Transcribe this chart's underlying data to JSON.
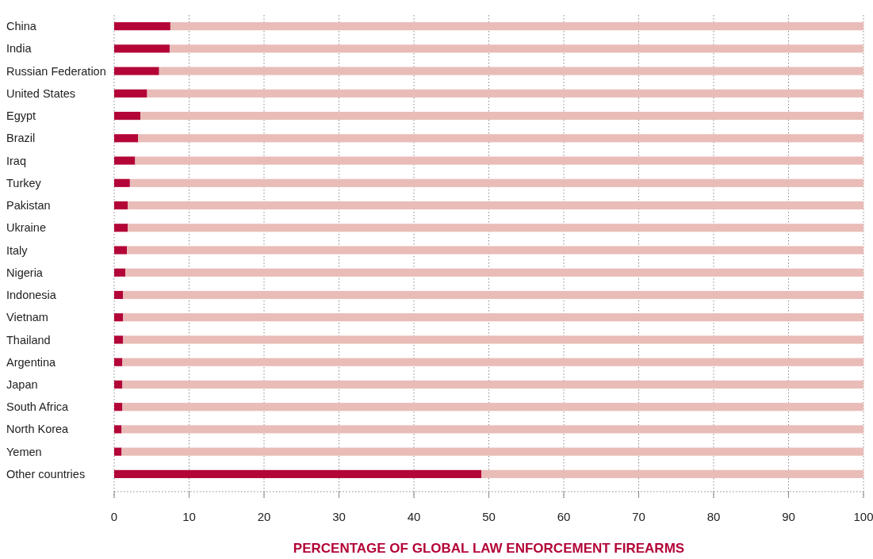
{
  "chart_data": {
    "type": "bar",
    "orientation": "horizontal",
    "stacked": true,
    "xlabel": "PERCENTAGE OF GLOBAL LAW ENFORCEMENT FIREARMS",
    "categories": [
      "China",
      "India",
      "Russian Federation",
      "United States",
      "Egypt",
      "Brazil",
      "Iraq",
      "Turkey",
      "Pakistan",
      "Ukraine",
      "Italy",
      "Nigeria",
      "Indonesia",
      "Vietnam",
      "Thailand",
      "Argentina",
      "Japan",
      "South Africa",
      "North Korea",
      "Yemen",
      "Other countries"
    ],
    "series": [
      {
        "color": "#b30537",
        "values": [
          7.5,
          7.4,
          6.0,
          4.4,
          3.5,
          3.2,
          2.8,
          2.1,
          1.8,
          1.8,
          1.7,
          1.5,
          1.2,
          1.2,
          1.2,
          1.1,
          1.1,
          1.1,
          1.0,
          1.0,
          49.0
        ]
      },
      {
        "color": "#e9bcb8",
        "values": [
          92.5,
          92.6,
          94.0,
          95.6,
          96.5,
          96.8,
          97.2,
          97.9,
          98.2,
          98.2,
          98.3,
          98.5,
          98.8,
          98.8,
          98.8,
          98.9,
          98.9,
          98.9,
          99.0,
          99.0,
          51.0
        ]
      }
    ],
    "xlim": [
      0,
      100
    ],
    "xticks": [
      0,
      10,
      20,
      30,
      40,
      50,
      60,
      70,
      80,
      90,
      100
    ],
    "grid": "x"
  }
}
